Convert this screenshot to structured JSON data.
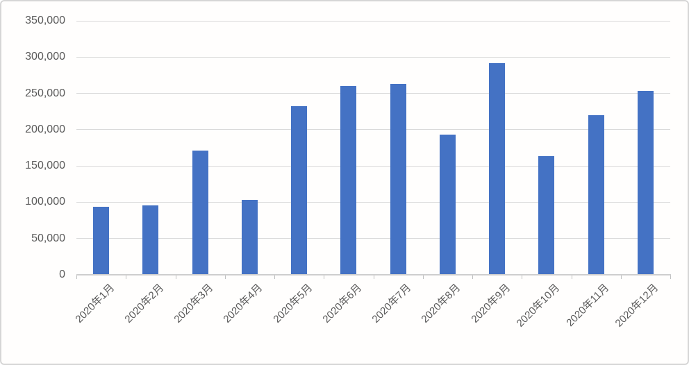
{
  "chart_data": {
    "type": "bar",
    "title": "",
    "xlabel": "",
    "ylabel": "",
    "categories": [
      "2020年1月",
      "2020年2月",
      "2020年3月",
      "2020年4月",
      "2020年5月",
      "2020年6月",
      "2020年7月",
      "2020年8月",
      "2020年9月",
      "2020年10月",
      "2020年11月",
      "2020年12月"
    ],
    "values": [
      94000,
      96000,
      171000,
      103000,
      232000,
      260000,
      263000,
      193000,
      292000,
      164000,
      220000,
      253000
    ],
    "ylim": [
      0,
      350000
    ],
    "y_tick_values": [
      0,
      50000,
      100000,
      150000,
      200000,
      250000,
      300000,
      350000
    ],
    "y_tick_labels": [
      "0",
      "50,000",
      "100,000",
      "150,000",
      "200,000",
      "250,000",
      "300,000",
      "350,000"
    ],
    "grid": true,
    "legend": "none",
    "bar_color": "#4472c4",
    "gridline_color": "#d9d9d9",
    "axis_line_color": "#cecece",
    "text_color": "#595959"
  }
}
